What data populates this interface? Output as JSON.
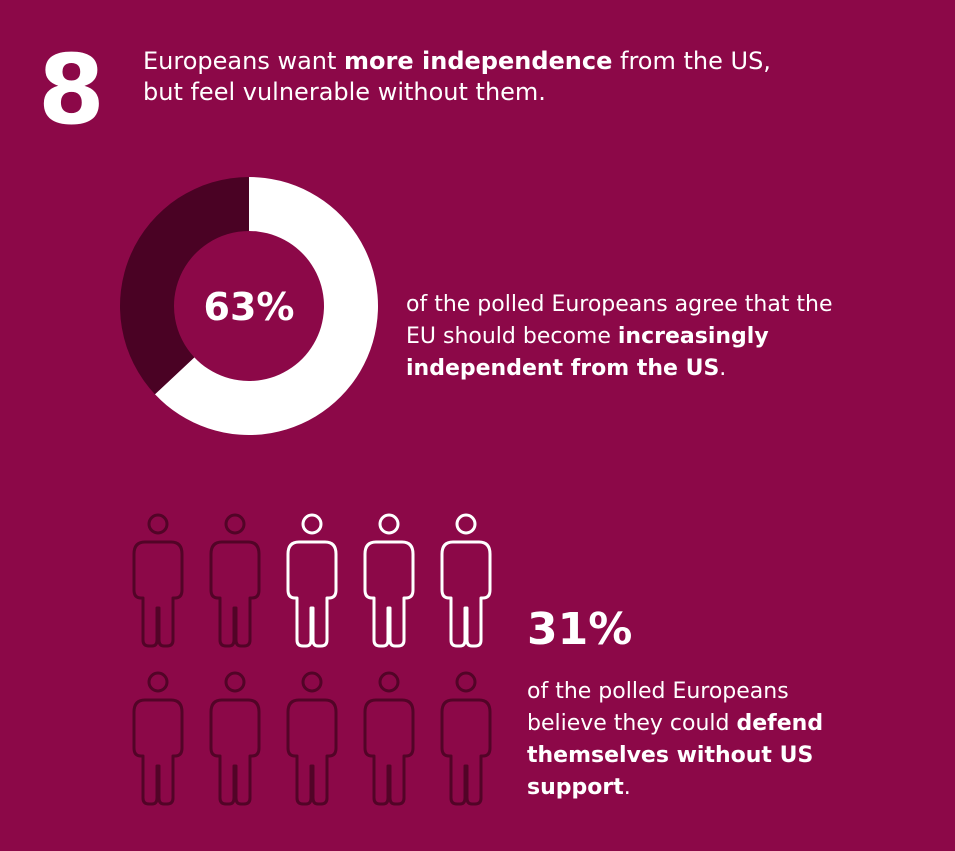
{
  "section_number": "8",
  "headline": {
    "pre": "Europeans want ",
    "bold": "more independence",
    "post": " from the US, but feel vulnerable without them."
  },
  "colors": {
    "background": "#8c0848",
    "dark": "#4a0224",
    "highlight": "#ffffff",
    "icon_muted": "#520427"
  },
  "chart_data": [
    {
      "type": "pie",
      "variant": "donut",
      "center_label": "63%",
      "values": [
        63,
        37
      ],
      "title": ""
    },
    {
      "type": "pictogram",
      "stat_label": "31%",
      "total_icons": 10,
      "highlighted_icons": 3
    }
  ],
  "donut_caption": {
    "pre": "of the polled Europeans agree that the EU should become ",
    "bold": "increasingly independent from the US",
    "post": "."
  },
  "people_caption": {
    "pre": "of the polled Europeans believe they could ",
    "bold": "defend themselves without US support",
    "post": "."
  }
}
